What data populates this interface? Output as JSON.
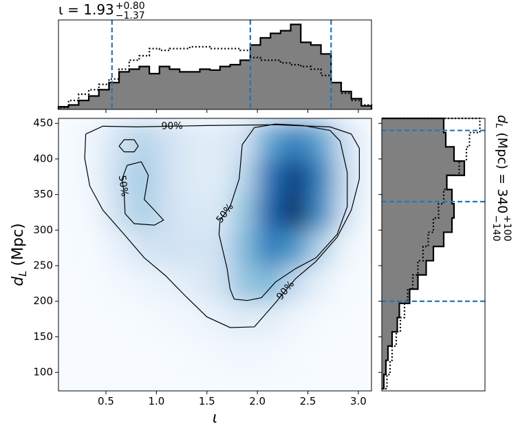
{
  "chart_data": [
    {
      "type": "heatmap",
      "colormap": "Blues",
      "x_label": "ι",
      "y_label": {
        "main": "d",
        "sub": "L",
        "rest": " (Mpc)"
      },
      "xlim": [
        0.03,
        3.13
      ],
      "ylim": [
        74,
        457
      ],
      "xticks": [
        0.5,
        {
          "value": 1,
          "label": "1.0"
        },
        1.5,
        {
          "value": 2,
          "label": "2.0"
        },
        2.5,
        {
          "value": 3,
          "label": "3.0"
        }
      ],
      "yticks": [
        100,
        150,
        200,
        250,
        300,
        350,
        400,
        450
      ],
      "x_edges": [
        0.03,
        0.25,
        0.5,
        0.75,
        1,
        1.25,
        1.5,
        1.75,
        2,
        2.25,
        2.5,
        2.75,
        3,
        3.13
      ],
      "y_edges": [
        74,
        100,
        150,
        200,
        250,
        300,
        350,
        400,
        450,
        457
      ],
      "z": [
        [
          0,
          0,
          0,
          0,
          0,
          0,
          0,
          0,
          0,
          0,
          0,
          0,
          0
        ],
        [
          0,
          0,
          0,
          0,
          0,
          0.01,
          0.02,
          0.03,
          0.02,
          0.01,
          0,
          0,
          0
        ],
        [
          0,
          0,
          0,
          0.01,
          0.02,
          0.04,
          0.08,
          0.12,
          0.1,
          0.04,
          0.01,
          0,
          0
        ],
        [
          0,
          0,
          0.02,
          0.05,
          0.08,
          0.12,
          0.2,
          0.4,
          0.45,
          0.25,
          0.08,
          0.01,
          0
        ],
        [
          0,
          0.01,
          0.08,
          0.18,
          0.2,
          0.18,
          0.2,
          0.45,
          0.7,
          0.6,
          0.3,
          0.05,
          0
        ],
        [
          0,
          0.03,
          0.22,
          0.33,
          0.2,
          0.15,
          0.15,
          0.4,
          0.8,
          1.0,
          0.65,
          0.2,
          0.01
        ],
        [
          0,
          0.05,
          0.25,
          0.35,
          0.2,
          0.12,
          0.12,
          0.3,
          0.75,
          0.95,
          0.7,
          0.25,
          0.02
        ],
        [
          0,
          0.05,
          0.2,
          0.3,
          0.2,
          0.12,
          0.12,
          0.2,
          0.55,
          0.7,
          0.55,
          0.2,
          0.02
        ],
        [
          0,
          0.02,
          0.05,
          0.08,
          0.08,
          0.06,
          0.06,
          0.08,
          0.15,
          0.2,
          0.15,
          0.05,
          0
        ]
      ],
      "contour_color": "#000000",
      "contours": [
        {
          "label": "90%",
          "x": [
            0.3,
            0.29,
            0.34,
            0.47,
            0.68,
            0.88,
            1.09,
            1.29,
            1.5,
            1.73,
            1.97,
            2.18,
            2.38,
            2.58,
            2.79,
            2.93,
            3.01,
            3.01,
            2.93,
            2.72,
            2.18,
            1.5,
            0.81,
            0.47,
            0.3
          ],
          "y": [
            435,
            401,
            362,
            328,
            294,
            261,
            236,
            207,
            178,
            163,
            164,
            198,
            232,
            256,
            290,
            328,
            372,
            415,
            435,
            445,
            448,
            447,
            445,
            446,
            435
          ]
        },
        {
          "label": "50%",
          "x": [
            1.77,
            1.9,
            2.04,
            2.18,
            2.38,
            2.58,
            2.79,
            2.89,
            2.89,
            2.82,
            2.72,
            2.45,
            2.18,
            1.97,
            1.85,
            1.82,
            1.73,
            1.63,
            1.62,
            1.7,
            1.73,
            1.77
          ],
          "y": [
            203,
            201,
            205,
            227,
            246,
            261,
            294,
            333,
            381,
            425,
            440,
            447,
            449,
            444,
            420,
            372,
            333,
            314,
            294,
            246,
            217,
            203
          ]
        },
        {
          "label": "50%",
          "x": [
            0.71,
            0.85,
            0.92,
            0.88,
            0.98,
            1.07,
            0.98,
            0.78,
            0.69,
            0.68,
            0.66,
            0.71
          ],
          "y": [
            391,
            396,
            377,
            343,
            328,
            314,
            307,
            309,
            323,
            352,
            372,
            391
          ]
        },
        {
          "x": [
            0.63,
            0.68,
            0.78,
            0.82,
            0.78,
            0.68,
            0.63
          ],
          "y": [
            418,
            427,
            427,
            418,
            410,
            410,
            418
          ]
        }
      ]
    },
    {
      "type": "histogram",
      "title": {
        "text": "ι = 1.93",
        "sup": "+0.80",
        "sub": "−1.37"
      },
      "xlim": [
        0.03,
        3.13
      ],
      "ylim": [
        0,
        1
      ],
      "bins": [
        0.03,
        0.13,
        0.23,
        0.33,
        0.43,
        0.53,
        0.63,
        0.73,
        0.83,
        0.93,
        1.03,
        1.13,
        1.23,
        1.33,
        1.43,
        1.53,
        1.63,
        1.73,
        1.83,
        1.93,
        2.03,
        2.13,
        2.23,
        2.33,
        2.43,
        2.53,
        2.63,
        2.73,
        2.83,
        2.93,
        3.03,
        3.13
      ],
      "series": [
        {
          "color": "#808080",
          "edgecolor": "#000000",
          "values": [
            0.03,
            0.05,
            0.1,
            0.15,
            0.22,
            0.3,
            0.42,
            0.45,
            0.48,
            0.4,
            0.48,
            0.45,
            0.42,
            0.42,
            0.45,
            0.44,
            0.48,
            0.5,
            0.55,
            0.72,
            0.8,
            0.85,
            0.88,
            0.95,
            0.75,
            0.72,
            0.62,
            0.3,
            0.2,
            0.12,
            0.04
          ]
        },
        {
          "color": "#000000",
          "style": "dotted",
          "values": [
            0.02,
            0.1,
            0.17,
            0.22,
            0.28,
            0.34,
            0.45,
            0.55,
            0.6,
            0.68,
            0.66,
            0.68,
            0.68,
            0.7,
            0.7,
            0.68,
            0.68,
            0.68,
            0.66,
            0.58,
            0.55,
            0.55,
            0.52,
            0.5,
            0.48,
            0.45,
            0.38,
            0.3,
            0.18,
            0.1,
            0.05
          ]
        }
      ],
      "quantiles": [
        0.56,
        1.93,
        2.73
      ],
      "quantile_color": "#1f77b4"
    },
    {
      "type": "histogram",
      "orientation": "horizontal",
      "label": {
        "main": "d",
        "sub": "L",
        "rest": " (Mpc) = 340",
        "sup": "+100",
        "lower": "−140"
      },
      "xlim": [
        0,
        1
      ],
      "ylim": [
        74,
        457
      ],
      "bins": [
        77,
        97,
        117,
        137,
        157,
        177,
        197,
        217,
        237,
        257,
        277,
        297,
        317,
        337,
        357,
        377,
        397,
        417,
        437,
        457
      ],
      "series": [
        {
          "color": "#808080",
          "edgecolor": "#000000",
          "values": [
            0.02,
            0.04,
            0.06,
            0.1,
            0.15,
            0.17,
            0.27,
            0.35,
            0.43,
            0.5,
            0.6,
            0.68,
            0.7,
            0.68,
            0.63,
            0.8,
            0.7,
            0.62,
            0.6
          ]
        },
        {
          "color": "#000000",
          "style": "dotted",
          "values": [
            0.05,
            0.08,
            0.1,
            0.14,
            0.18,
            0.22,
            0.25,
            0.3,
            0.35,
            0.4,
            0.45,
            0.5,
            0.55,
            0.6,
            0.63,
            0.75,
            0.82,
            0.85,
            0.95
          ]
        }
      ],
      "quantiles": [
        200,
        340,
        440
      ],
      "quantile_color": "#1f77b4"
    }
  ]
}
